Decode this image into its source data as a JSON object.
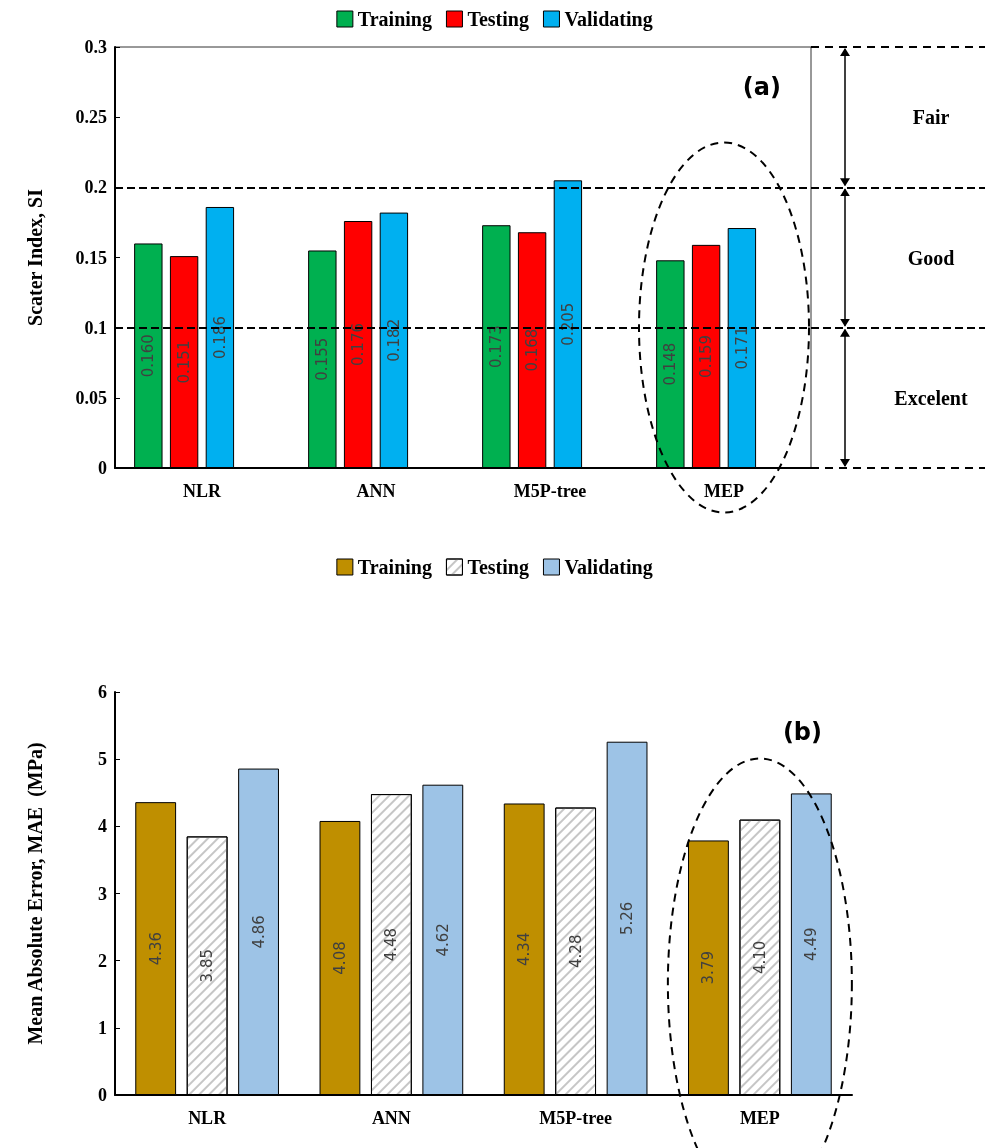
{
  "chart_data": [
    {
      "type": "bar",
      "ylabel": "Scater Index, SI",
      "categories": [
        "NLR",
        "ANN",
        "M5P-tree",
        "MEP"
      ],
      "ylim": [
        0,
        0.3
      ],
      "yticks": [
        0,
        0.05,
        0.1,
        0.15,
        0.2,
        0.25,
        0.3
      ],
      "legend": "top",
      "series": [
        {
          "name": "Training",
          "color": "#00b050",
          "values": [
            0.16,
            0.155,
            0.173,
            0.148
          ],
          "value_labels": [
            "0.160",
            "0.155",
            "0.173",
            "0.148"
          ]
        },
        {
          "name": "Testing",
          "color": "#ff0000",
          "values": [
            0.151,
            0.176,
            0.168,
            0.159
          ],
          "value_labels": [
            "0.151",
            "0.176",
            "0.168",
            "0.159"
          ]
        },
        {
          "name": "Validating",
          "color": "#00b0f0",
          "values": [
            0.186,
            0.182,
            0.205,
            0.171
          ],
          "value_labels": [
            "0.186",
            "0.182",
            "0.205",
            "0.171"
          ]
        }
      ],
      "ref_lines": [
        {
          "axis": "y",
          "value": 0.1,
          "label": null,
          "line_style": "dashed"
        },
        {
          "axis": "y",
          "value": 0.2,
          "label": null,
          "line_style": "dashed"
        }
      ],
      "annotations": [
        "(a)",
        "Fair",
        "Good",
        "Excelent"
      ]
    },
    {
      "type": "bar",
      "ylabel": "Mean Absolute Error, MAE  (MPa)",
      "categories": [
        "NLR",
        "ANN",
        "M5P-tree",
        "MEP"
      ],
      "ylim": [
        0,
        6
      ],
      "yticks": [
        0,
        1,
        2,
        3,
        4,
        5,
        6
      ],
      "legend": "top",
      "series": [
        {
          "name": "Training",
          "color": "#bf8f00",
          "values": [
            4.36,
            4.08,
            4.34,
            3.79
          ],
          "value_labels": [
            "4.36",
            "4.08",
            "4.34",
            "3.79"
          ]
        },
        {
          "name": "Testing",
          "color": "#ffffff",
          "values": [
            3.85,
            4.48,
            4.28,
            4.1
          ],
          "value_labels": [
            "3.85",
            "4.48",
            "4.28",
            "4.10"
          ]
        },
        {
          "name": "Validating",
          "color": "#9dc3e6",
          "values": [
            4.86,
            4.62,
            5.26,
            4.49
          ],
          "value_labels": [
            "4.86",
            "4.62",
            "5.26",
            "4.49"
          ]
        }
      ],
      "annotations": [
        "(b)"
      ]
    }
  ]
}
